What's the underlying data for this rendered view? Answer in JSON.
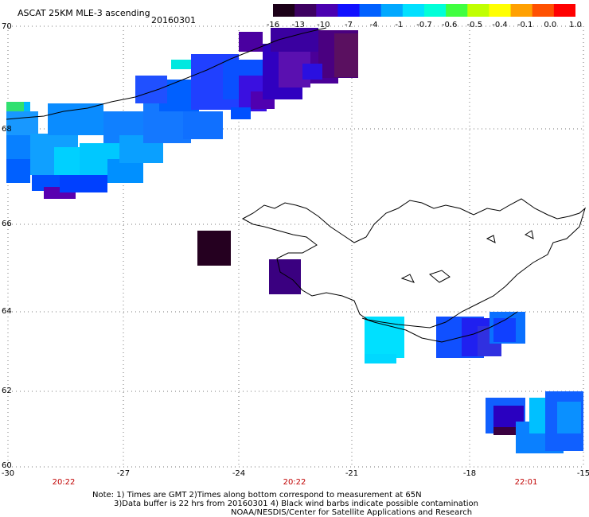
{
  "header": {
    "title": "ASCAT 25KM MLE-3 ascending",
    "date": "20160301"
  },
  "colorbar": {
    "labels": [
      "-16",
      "-13",
      "-10",
      "-7",
      "-4",
      "-1",
      "-0.7",
      "-0.6",
      "-0.5",
      "-0.4",
      "-0.1",
      "0.0",
      "1.0"
    ],
    "colors": [
      "#1c0018",
      "#3d0060",
      "#4a00b0",
      "#1010ff",
      "#0060ff",
      "#00a8ff",
      "#00e0ff",
      "#00ffd8",
      "#40ff40",
      "#c0ff00",
      "#ffff00",
      "#ffa000",
      "#ff5000",
      "#ff0000"
    ]
  },
  "axes": {
    "lat_labels": [
      "70",
      "68",
      "66",
      "64",
      "62",
      "60"
    ],
    "lon_labels": [
      "-30",
      "-27",
      "-24",
      "-21",
      "-18",
      "-15"
    ],
    "time_labels": [
      "20:22",
      "20:22",
      "22:01"
    ]
  },
  "notes": {
    "line1": "Note: 1) Times are GMT 2)Times along bottom correspond to measurement at 65N",
    "line2": "3)Data buffer is 22 hrs from 20160301 4) Black wind barbs indicate possible contamination",
    "line3": "NOAA/NESDIS/Center for Satellite Applications and Research"
  }
}
